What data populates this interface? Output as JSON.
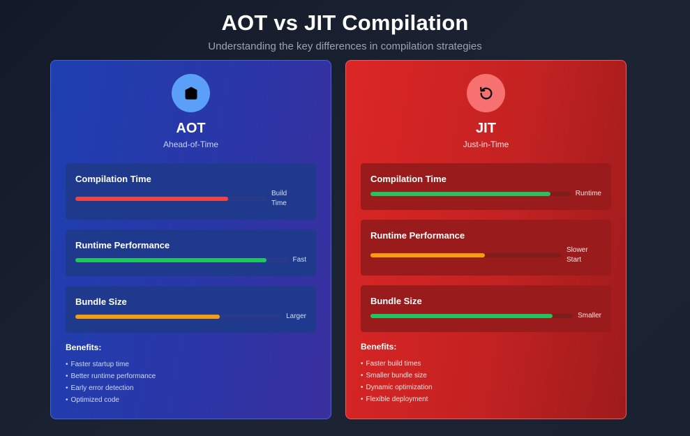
{
  "header": {
    "title": "AOT vs JIT Compilation",
    "subtitle": "Understanding the key differences in compilation strategies"
  },
  "colors": {
    "red": "#ef4444",
    "green": "#22c55e",
    "orange": "#f59e0b",
    "aot_accent": "#5aa0f8",
    "jit_accent": "#f87171"
  },
  "aot": {
    "icon": "shield-icon",
    "title": "AOT",
    "subtitle": "Ahead-of-Time",
    "metrics": [
      {
        "name": "Compilation Time",
        "label_lines": [
          "Build",
          "Time"
        ],
        "fill": 0.8,
        "color": "red"
      },
      {
        "name": "Runtime Performance",
        "label_lines": [
          "Fast"
        ],
        "fill": 0.9,
        "color": "green"
      },
      {
        "name": "Bundle Size",
        "label_lines": [
          "Larger"
        ],
        "fill": 0.7,
        "color": "orange"
      }
    ],
    "benefits_title": "Benefits:",
    "benefits": [
      "Faster startup time",
      "Better runtime performance",
      "Early error detection",
      "Optimized code"
    ]
  },
  "jit": {
    "icon": "refresh-icon",
    "title": "JIT",
    "subtitle": "Just-in-Time",
    "metrics": [
      {
        "name": "Compilation Time",
        "label_lines": [
          "Runtime"
        ],
        "fill": 0.9,
        "color": "green"
      },
      {
        "name": "Runtime Performance",
        "label_lines": [
          "Slower",
          "Start"
        ],
        "fill": 0.6,
        "color": "orange"
      },
      {
        "name": "Bundle Size",
        "label_lines": [
          "Smaller"
        ],
        "fill": 0.9,
        "color": "green"
      }
    ],
    "benefits_title": "Benefits:",
    "benefits": [
      "Faster build times",
      "Smaller bundle size",
      "Dynamic optimization",
      "Flexible deployment"
    ]
  }
}
